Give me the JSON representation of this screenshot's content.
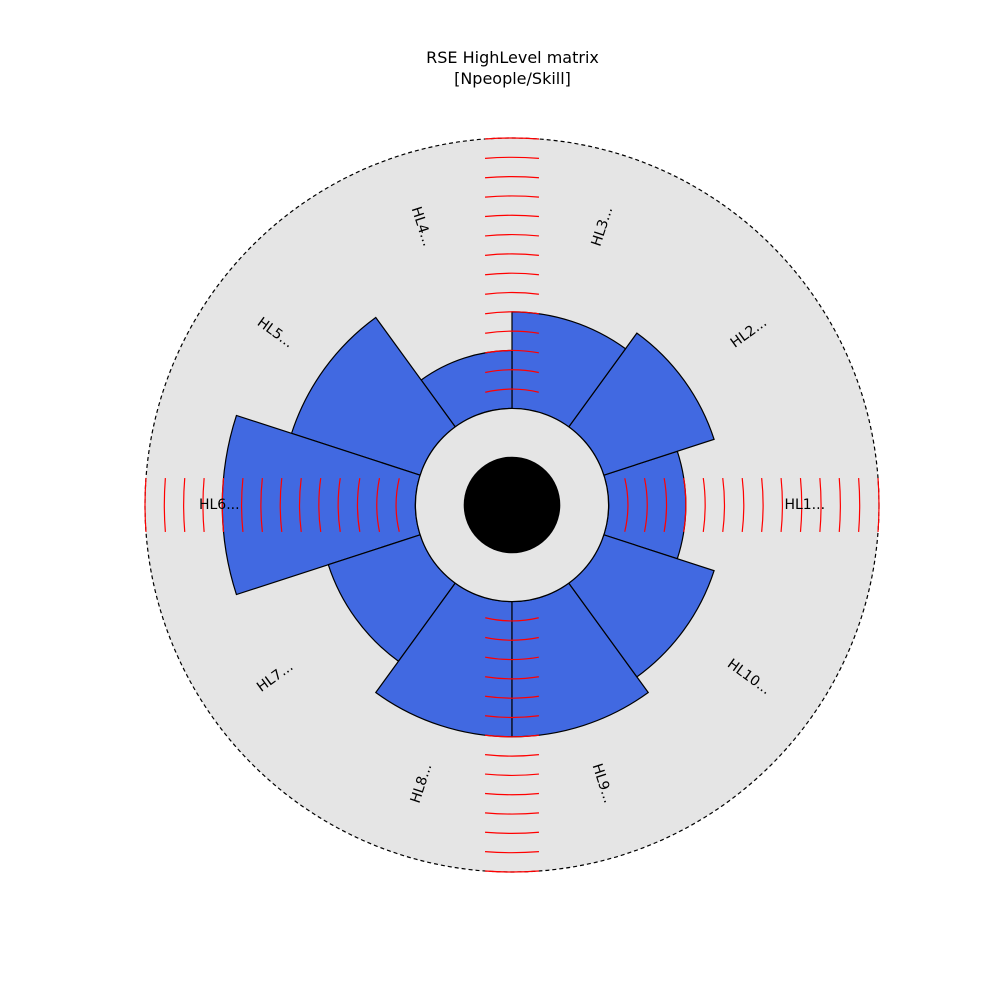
{
  "chart_data": {
    "type": "polar-bar",
    "title": "RSE HighLevel matrix",
    "subtitle": "[Npeople/Skill]",
    "categories": [
      "HL1...",
      "HL2...",
      "HL3...",
      "HL4...",
      "HL5...",
      "HL6...",
      "HL7...",
      "HL8...",
      "HL9...",
      "HL10..."
    ],
    "values": [
      4,
      6,
      5,
      3,
      7,
      10,
      5,
      7,
      7,
      6
    ],
    "rlim": [
      -5,
      14
    ],
    "inner_hole": 0,
    "colors": {
      "bar": "#4169e1",
      "background": "#e5e5e5",
      "center": "#000000",
      "ticks": "#ff0000",
      "edge": "#000000"
    }
  }
}
